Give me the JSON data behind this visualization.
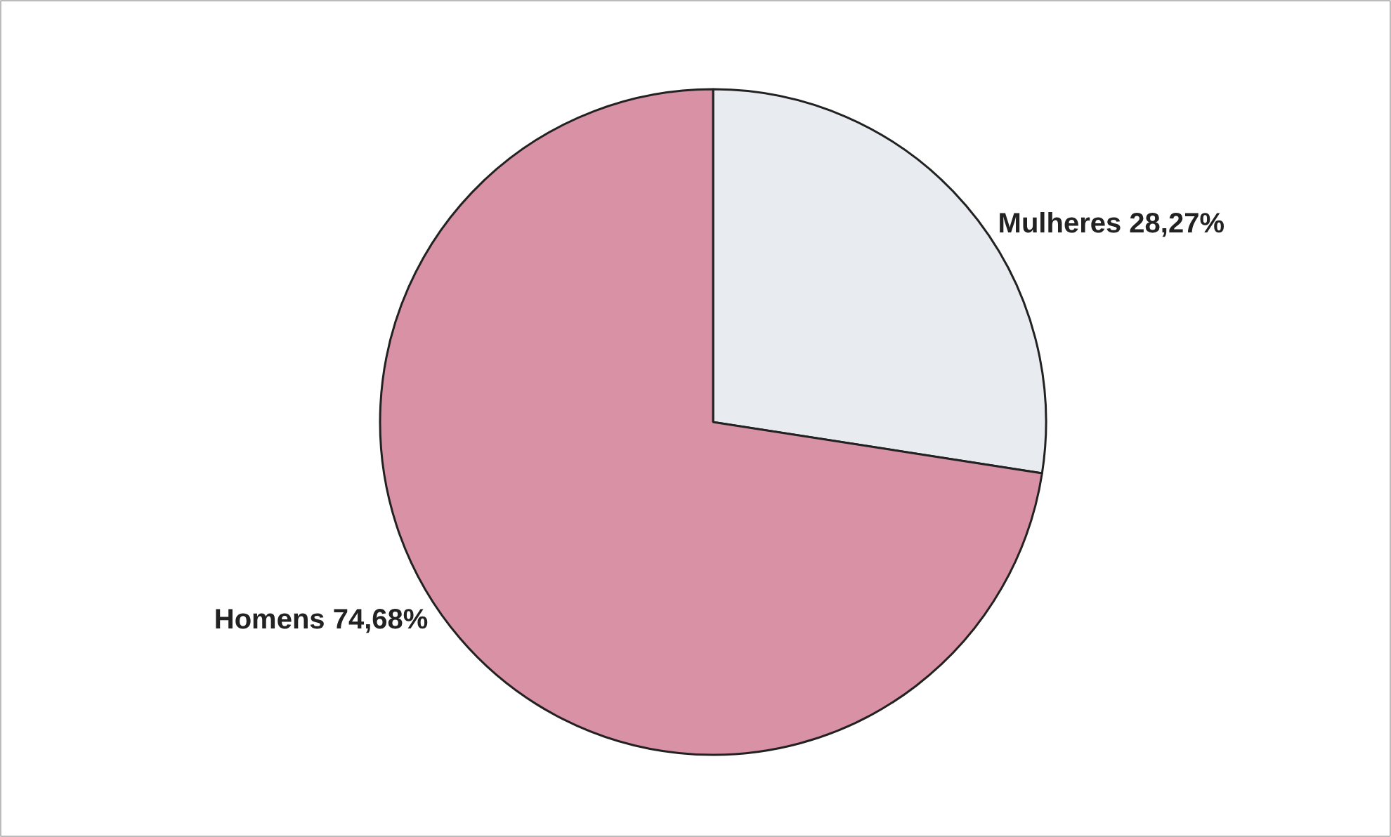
{
  "chart_data": {
    "type": "pie",
    "categories": [
      "Mulheres",
      "Homens"
    ],
    "values": [
      28.27,
      74.68
    ],
    "value_labels": [
      "28,27%",
      "74,68%"
    ],
    "colors": [
      "#e8ebf0",
      "#d991a6"
    ]
  }
}
